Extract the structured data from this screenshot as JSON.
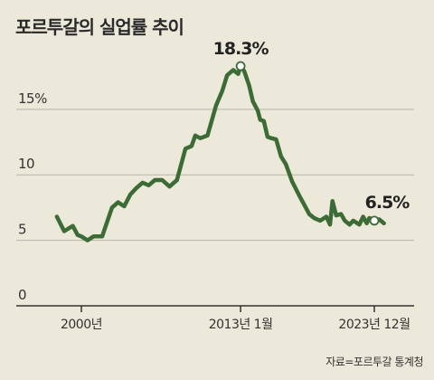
{
  "chart_data": {
    "type": "line",
    "title": "포르투갈의 실업률 추이",
    "source": "자료=포르투갈 통계청",
    "x_tick_labels": [
      {
        "x": 2000,
        "label": "2000년"
      },
      {
        "x": 2013.0,
        "label": "2013년 1월"
      },
      {
        "x": 2023.917,
        "label": "2023년 12월"
      }
    ],
    "y_ticks": [
      {
        "y": 0,
        "label": "0"
      },
      {
        "y": 5,
        "label": "5"
      },
      {
        "y": 10,
        "label": "10"
      },
      {
        "y": 15,
        "label": "15%"
      }
    ],
    "xlim": [
      1998.0,
      2025.7
    ],
    "ylim": [
      0,
      19.2
    ],
    "grid": true,
    "series": [
      {
        "color": "#3c6b35",
        "points": [
          [
            1998.0,
            6.8
          ],
          [
            1998.6,
            5.7
          ],
          [
            1999.3,
            6.1
          ],
          [
            1999.7,
            5.4
          ],
          [
            2000.0,
            5.3
          ],
          [
            2000.5,
            5.0
          ],
          [
            2001.0,
            5.3
          ],
          [
            2001.7,
            5.3
          ],
          [
            2002.5,
            7.5
          ],
          [
            2003.0,
            7.9
          ],
          [
            2003.5,
            7.6
          ],
          [
            2004.0,
            8.5
          ],
          [
            2004.5,
            9.0
          ],
          [
            2005.0,
            9.4
          ],
          [
            2005.5,
            9.2
          ],
          [
            2006.0,
            9.6
          ],
          [
            2006.6,
            9.6
          ],
          [
            2007.2,
            9.1
          ],
          [
            2007.8,
            9.6
          ],
          [
            2008.5,
            12.0
          ],
          [
            2009.0,
            12.2
          ],
          [
            2009.3,
            13.0
          ],
          [
            2009.7,
            12.8
          ],
          [
            2010.3,
            13.0
          ],
          [
            2011.0,
            15.3
          ],
          [
            2011.5,
            16.4
          ],
          [
            2011.9,
            17.6
          ],
          [
            2012.4,
            18.0
          ],
          [
            2012.8,
            17.7
          ],
          [
            2013.0,
            18.3
          ],
          [
            2013.3,
            17.9
          ],
          [
            2013.7,
            16.8
          ],
          [
            2014.0,
            15.6
          ],
          [
            2014.4,
            14.9
          ],
          [
            2014.6,
            14.2
          ],
          [
            2014.9,
            14.1
          ],
          [
            2015.2,
            12.9
          ],
          [
            2015.5,
            12.8
          ],
          [
            2015.9,
            12.7
          ],
          [
            2016.3,
            11.4
          ],
          [
            2016.7,
            10.8
          ],
          [
            2017.2,
            9.5
          ],
          [
            2017.8,
            8.4
          ],
          [
            2018.2,
            7.7
          ],
          [
            2018.6,
            7.0
          ],
          [
            2019.0,
            6.7
          ],
          [
            2019.5,
            6.5
          ],
          [
            2020.0,
            6.8
          ],
          [
            2020.3,
            6.2
          ],
          [
            2020.5,
            8.0
          ],
          [
            2020.8,
            6.9
          ],
          [
            2021.2,
            7.0
          ],
          [
            2021.5,
            6.5
          ],
          [
            2021.9,
            6.2
          ],
          [
            2022.2,
            6.5
          ],
          [
            2022.7,
            6.2
          ],
          [
            2023.0,
            6.8
          ],
          [
            2023.3,
            6.3
          ],
          [
            2023.5,
            6.7
          ],
          [
            2023.8,
            6.6
          ],
          [
            2024.0,
            6.4
          ],
          [
            2024.3,
            6.6
          ],
          [
            2024.7,
            6.3
          ]
        ]
      }
    ],
    "annotations": [
      {
        "x": 2013.0,
        "y": 18.3,
        "label": "18.3%"
      },
      {
        "x": 2023.917,
        "y": 6.5,
        "label": "6.5%"
      }
    ]
  }
}
